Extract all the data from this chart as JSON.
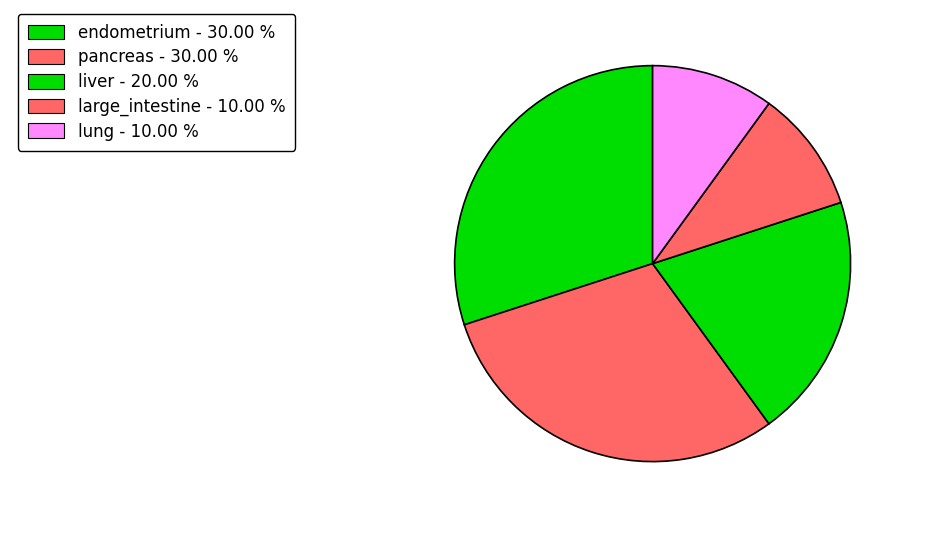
{
  "labels": [
    "endometrium",
    "pancreas",
    "liver",
    "large_intestine",
    "lung"
  ],
  "values": [
    30,
    30,
    20,
    10,
    10
  ],
  "colors": [
    "#00dd00",
    "#ff6666",
    "#00dd00",
    "#ff6666",
    "#ff88ff"
  ],
  "legend_labels": [
    "endometrium - 30.00 %",
    "pancreas - 30.00 %",
    "liver - 20.00 %",
    "large_intestine - 10.00 %",
    "lung - 10.00 %"
  ],
  "startangle": 90,
  "figure_width": 9.39,
  "figure_height": 5.38,
  "dpi": 100
}
